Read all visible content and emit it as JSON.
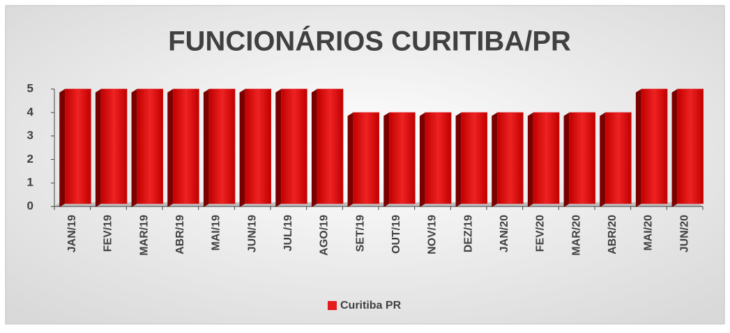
{
  "chart_data": {
    "type": "bar3d",
    "title": "FUNCIONÁRIOS CURITIBA/PR",
    "categories": [
      "JAN/19",
      "FEV/19",
      "MAR/19",
      "ABR/19",
      "MAI/19",
      "JUN/19",
      "JUL/19",
      "AGO/19",
      "SET/19",
      "OUT/19",
      "NOV/19",
      "DEZ/19",
      "JAN/20",
      "FEV/20",
      "MAR/20",
      "ABR/20",
      "MAI/20",
      "JUN/20"
    ],
    "series": [
      {
        "name": "Curitiba PR",
        "color": "#e31b1b",
        "values": [
          5,
          5,
          5,
          5,
          5,
          5,
          5,
          5,
          4,
          4,
          4,
          4,
          4,
          4,
          4,
          4,
          5,
          5
        ]
      }
    ],
    "ylim": [
      0,
      5
    ],
    "yticks": [
      0,
      1,
      2,
      3,
      4,
      5
    ],
    "legend": "bottom"
  }
}
